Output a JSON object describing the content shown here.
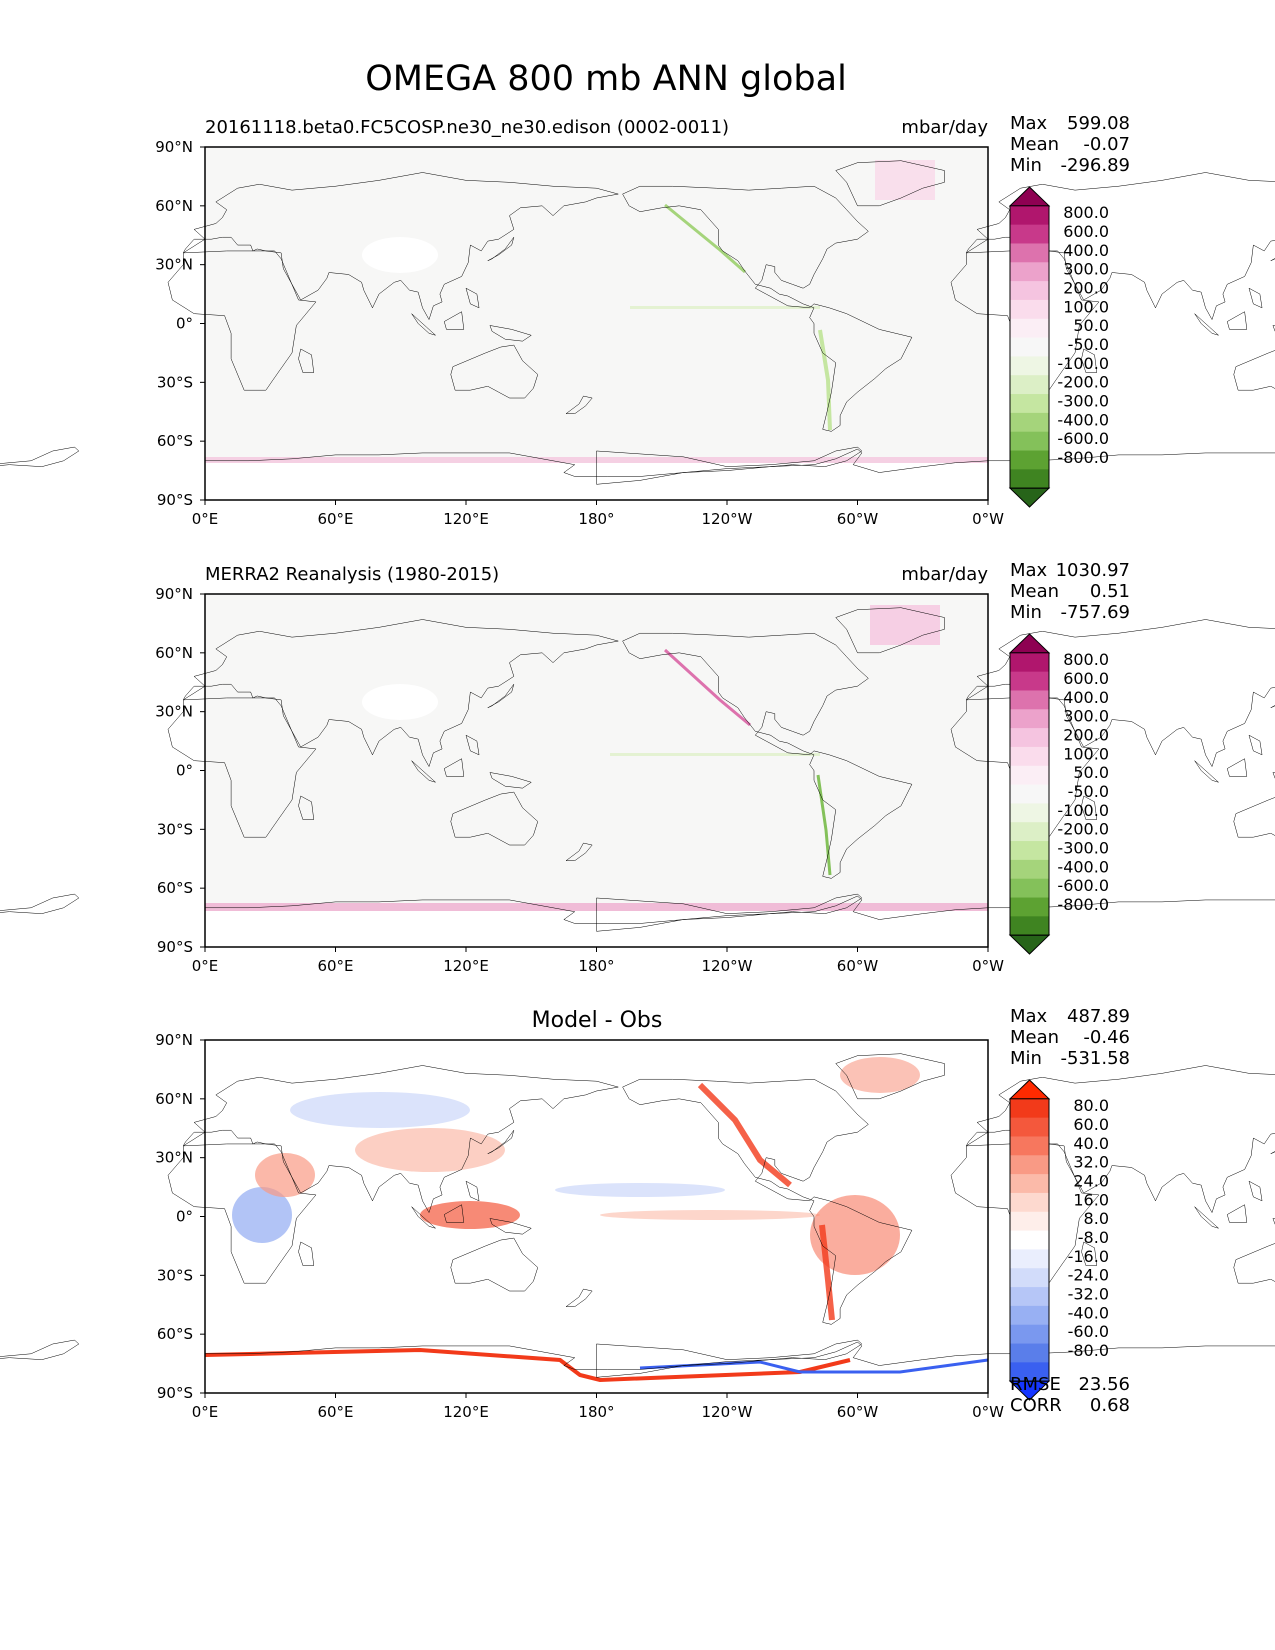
{
  "figure_title": "OMEGA 800 mb ANN global",
  "chart_data": [
    {
      "type": "heatmap",
      "panel": "test",
      "title_left": "20161118.beta0.FC5COSP.ne30_ne30.edison (0002-0011)",
      "title_center": "",
      "title_right": "mbar/day",
      "x_ticks": [
        "0°E",
        "60°E",
        "120°E",
        "180°",
        "120°W",
        "60°W",
        "0°W"
      ],
      "y_ticks": [
        "90°N",
        "60°N",
        "30°N",
        "0°",
        "30°S",
        "60°S",
        "90°S"
      ],
      "xlim": [
        0,
        360
      ],
      "ylim": [
        -90,
        90
      ],
      "stats": [
        {
          "label": "Max",
          "value": "599.08"
        },
        {
          "label": "Mean",
          "value": "-0.07"
        },
        {
          "label": "Min",
          "value": "-296.89"
        }
      ],
      "colorbar": {
        "levels": [
          "800.0",
          "600.0",
          "400.0",
          "300.0",
          "200.0",
          "100.0",
          "50.0",
          "-50.0",
          "-100.0",
          "-200.0",
          "-300.0",
          "-400.0",
          "-600.0",
          "-800.0"
        ],
        "colors": [
          "#8e0152",
          "#b0166d",
          "#c8398a",
          "#dd72ad",
          "#eca2cb",
          "#f5c4e0",
          "#fadcec",
          "#fbeef5",
          "#f7f7f7",
          "#eef6e4",
          "#dcefc6",
          "#c5e6a1",
          "#a5d47b",
          "#84c15a",
          "#5da232",
          "#3f8421",
          "#276419"
        ]
      },
      "notes": "Mostly near-zero vertical velocity; pink (descending) along coasts and Antarctica, green lines along Andes and Rockies."
    },
    {
      "type": "heatmap",
      "panel": "reference",
      "title_left": "MERRA2 Reanalysis (1980-2015)",
      "title_center": "",
      "title_right": "mbar/day",
      "x_ticks": [
        "0°E",
        "60°E",
        "120°E",
        "180°",
        "120°W",
        "60°W",
        "0°W"
      ],
      "y_ticks": [
        "90°N",
        "60°N",
        "30°N",
        "0°",
        "30°S",
        "60°S",
        "90°S"
      ],
      "xlim": [
        0,
        360
      ],
      "ylim": [
        -90,
        90
      ],
      "stats": [
        {
          "label": "Max",
          "value": "1030.97"
        },
        {
          "label": "Mean",
          "value": "0.51"
        },
        {
          "label": "Min",
          "value": "-757.69"
        }
      ],
      "colorbar": {
        "levels": [
          "800.0",
          "600.0",
          "400.0",
          "300.0",
          "200.0",
          "100.0",
          "50.0",
          "-50.0",
          "-100.0",
          "-200.0",
          "-300.0",
          "-400.0",
          "-600.0",
          "-800.0"
        ],
        "colors": [
          "#8e0152",
          "#b0166d",
          "#c8398a",
          "#dd72ad",
          "#eca2cb",
          "#f5c4e0",
          "#fadcec",
          "#fbeef5",
          "#f7f7f7",
          "#eef6e4",
          "#dcefc6",
          "#c5e6a1",
          "#a5d47b",
          "#84c15a",
          "#5da232",
          "#3f8421",
          "#276419"
        ]
      }
    },
    {
      "type": "heatmap",
      "panel": "difference",
      "title_left": "",
      "title_center": "Model - Obs",
      "title_right": "",
      "x_ticks": [
        "0°E",
        "60°E",
        "120°E",
        "180°",
        "120°W",
        "60°W",
        "0°W"
      ],
      "y_ticks": [
        "90°N",
        "60°N",
        "30°N",
        "0°",
        "30°S",
        "60°S",
        "90°S"
      ],
      "xlim": [
        0,
        360
      ],
      "ylim": [
        -90,
        90
      ],
      "stats": [
        {
          "label": "Max",
          "value": "487.89"
        },
        {
          "label": "Mean",
          "value": "-0.46"
        },
        {
          "label": "Min",
          "value": "-531.58"
        }
      ],
      "bottom_stats": [
        {
          "label": "RMSE",
          "value": "23.56"
        },
        {
          "label": "CORR",
          "value": "0.68"
        }
      ],
      "colorbar": {
        "levels": [
          "80.0",
          "60.0",
          "40.0",
          "32.0",
          "24.0",
          "16.0",
          "8.0",
          "-8.0",
          "-16.0",
          "-24.0",
          "-32.0",
          "-40.0",
          "-60.0",
          "-80.0"
        ],
        "colors": [
          "#ff2a00",
          "#f23a1a",
          "#f4583c",
          "#f7775e",
          "#f99a85",
          "#fbbaa9",
          "#fdd9cf",
          "#feeeea",
          "#ffffff",
          "#eaeefd",
          "#d2dcfa",
          "#b6c6f7",
          "#98b0f3",
          "#7a98ef",
          "#5a7eea",
          "#3a60f0",
          "#1536ff"
        ]
      }
    }
  ]
}
